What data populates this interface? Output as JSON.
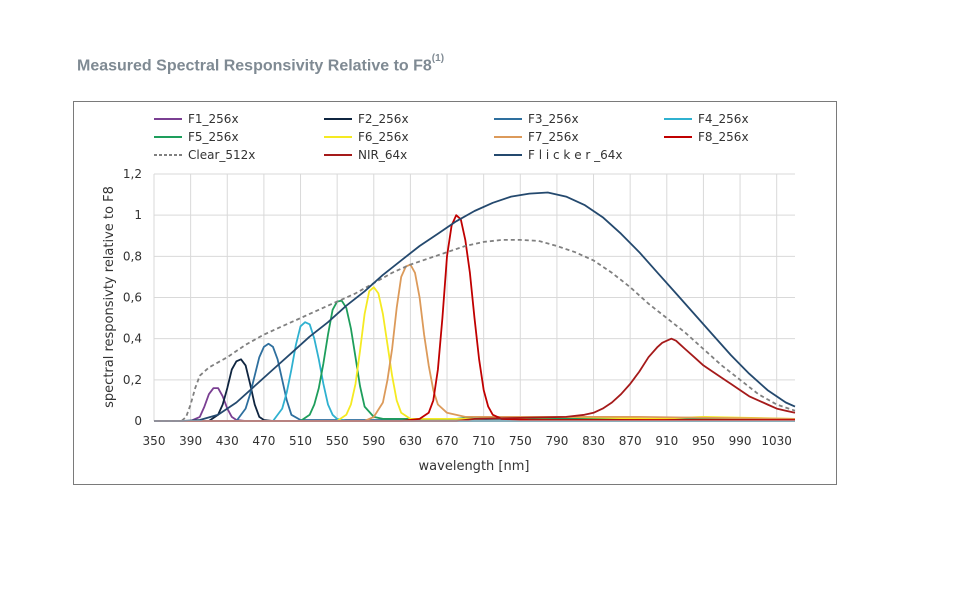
{
  "page": {
    "title": "Measured Spectral Responsivity Relative to F8",
    "title_sup": "(1)"
  },
  "chart_data": {
    "type": "line",
    "title": "Measured Spectral Responsivity Relative to F8",
    "xlabel": "wavelength [nm]",
    "ylabel": "spectral responsivty relative to F8",
    "xlim": [
      350,
      1050
    ],
    "ylim": [
      0,
      1.2
    ],
    "xticks": [
      350,
      390,
      430,
      470,
      510,
      550,
      590,
      630,
      670,
      710,
      750,
      790,
      830,
      870,
      910,
      950,
      990,
      1030
    ],
    "yticks": [
      0,
      0.2,
      0.4,
      0.6,
      0.8,
      1,
      1.2
    ],
    "ytick_labels": [
      "0",
      "0,2",
      "0,4",
      "0,6",
      "0,8",
      "1",
      "1,2"
    ],
    "grid": true,
    "legend_position": "top",
    "series": [
      {
        "name": "F1_256x",
        "color": "#7a3f92",
        "dash": false,
        "x": [
          350,
          390,
          400,
          405,
          410,
          415,
          420,
          425,
          430,
          435,
          440,
          450,
          480,
          1050
        ],
        "y": [
          0,
          0,
          0.02,
          0.07,
          0.13,
          0.16,
          0.16,
          0.12,
          0.06,
          0.02,
          0.005,
          0,
          0,
          0
        ]
      },
      {
        "name": "F2_256x",
        "color": "#0f2540",
        "dash": false,
        "x": [
          350,
          410,
          420,
          425,
          430,
          435,
          440,
          445,
          450,
          455,
          460,
          465,
          470,
          480,
          1050
        ],
        "y": [
          0,
          0,
          0.03,
          0.08,
          0.16,
          0.25,
          0.29,
          0.3,
          0.27,
          0.18,
          0.08,
          0.02,
          0.005,
          0,
          0
        ]
      },
      {
        "name": "F3_256x",
        "color": "#2e6f9e",
        "dash": false,
        "x": [
          350,
          440,
          450,
          455,
          460,
          465,
          470,
          475,
          480,
          485,
          490,
          495,
          500,
          510,
          1050
        ],
        "y": [
          0,
          0,
          0.06,
          0.13,
          0.22,
          0.31,
          0.36,
          0.375,
          0.36,
          0.3,
          0.2,
          0.1,
          0.03,
          0.005,
          0.005
        ]
      },
      {
        "name": "F4_256x",
        "color": "#2fb1d0",
        "dash": false,
        "x": [
          350,
          480,
          490,
          495,
          500,
          505,
          510,
          515,
          520,
          525,
          530,
          535,
          540,
          545,
          550,
          560,
          1050
        ],
        "y": [
          0,
          0,
          0.06,
          0.14,
          0.25,
          0.37,
          0.46,
          0.48,
          0.47,
          0.4,
          0.3,
          0.18,
          0.08,
          0.03,
          0.01,
          0,
          0
        ]
      },
      {
        "name": "F5_256x",
        "color": "#1e9e5c",
        "dash": false,
        "x": [
          350,
          510,
          520,
          525,
          530,
          535,
          540,
          545,
          550,
          555,
          560,
          565,
          570,
          575,
          580,
          590,
          600,
          680,
          700,
          750,
          1050
        ],
        "y": [
          0,
          0,
          0.03,
          0.08,
          0.16,
          0.28,
          0.42,
          0.54,
          0.58,
          0.585,
          0.55,
          0.45,
          0.31,
          0.17,
          0.07,
          0.02,
          0.01,
          0.01,
          0.02,
          0.01,
          0.01
        ]
      },
      {
        "name": "F6_256x",
        "color": "#f5ea22",
        "dash": false,
        "x": [
          350,
          550,
          560,
          565,
          570,
          575,
          580,
          585,
          590,
          595,
          600,
          605,
          610,
          615,
          620,
          630,
          700,
          800,
          900,
          950,
          1050
        ],
        "y": [
          0,
          0,
          0.03,
          0.08,
          0.18,
          0.34,
          0.52,
          0.63,
          0.65,
          0.62,
          0.52,
          0.37,
          0.22,
          0.1,
          0.04,
          0.01,
          0.01,
          0.02,
          0.01,
          0.02,
          0.01
        ]
      },
      {
        "name": "F7_256x",
        "color": "#dc9a5a",
        "dash": false,
        "x": [
          350,
          580,
          590,
          600,
          605,
          610,
          615,
          620,
          625,
          630,
          635,
          640,
          645,
          650,
          655,
          660,
          670,
          690,
          760,
          880,
          960,
          1050
        ],
        "y": [
          0,
          0,
          0.02,
          0.09,
          0.2,
          0.35,
          0.55,
          0.7,
          0.75,
          0.76,
          0.72,
          0.6,
          0.42,
          0.27,
          0.15,
          0.08,
          0.04,
          0.02,
          0.02,
          0.02,
          0.015,
          0.01
        ]
      },
      {
        "name": "F8_256x",
        "color": "#c00000",
        "dash": false,
        "x": [
          350,
          620,
          640,
          650,
          655,
          660,
          665,
          670,
          675,
          680,
          685,
          690,
          695,
          700,
          705,
          710,
          715,
          720,
          730,
          760,
          800,
          850,
          870,
          890,
          900,
          910,
          920,
          930,
          940,
          960,
          980,
          1000,
          1020,
          1040,
          1050
        ],
        "y": [
          0,
          0,
          0.01,
          0.04,
          0.1,
          0.25,
          0.5,
          0.8,
          0.95,
          1,
          0.98,
          0.88,
          0.72,
          0.5,
          0.3,
          0.15,
          0.07,
          0.03,
          0.01,
          0.005,
          0.005,
          0.005,
          0.005,
          0.005,
          0.005,
          0.005,
          0.005,
          0.005,
          0.005,
          0.005,
          0.005,
          0.005,
          0.005,
          0.005,
          0.005
        ]
      },
      {
        "name": "Clear_512x",
        "color": "#808080",
        "dash": true,
        "x": [
          350,
          380,
          385,
          390,
          395,
          400,
          410,
          430,
          450,
          470,
          490,
          510,
          530,
          550,
          570,
          590,
          610,
          630,
          650,
          670,
          690,
          710,
          730,
          750,
          770,
          790,
          810,
          830,
          850,
          870,
          890,
          910,
          930,
          950,
          970,
          990,
          1010,
          1030,
          1050
        ],
        "y": [
          0,
          0,
          0.02,
          0.08,
          0.16,
          0.22,
          0.26,
          0.31,
          0.37,
          0.42,
          0.46,
          0.5,
          0.54,
          0.58,
          0.62,
          0.67,
          0.72,
          0.76,
          0.79,
          0.82,
          0.85,
          0.87,
          0.88,
          0.88,
          0.875,
          0.85,
          0.82,
          0.78,
          0.72,
          0.65,
          0.57,
          0.5,
          0.43,
          0.35,
          0.27,
          0.2,
          0.13,
          0.08,
          0.05
        ]
      },
      {
        "name": "NIR_64x",
        "color": "#a51a1a",
        "dash": false,
        "x": [
          350,
          680,
          700,
          750,
          800,
          820,
          830,
          840,
          850,
          860,
          870,
          880,
          890,
          900,
          905,
          910,
          915,
          920,
          925,
          930,
          940,
          950,
          960,
          970,
          980,
          990,
          1000,
          1010,
          1020,
          1030,
          1040,
          1050
        ],
        "y": [
          0,
          0,
          0.01,
          0.015,
          0.02,
          0.03,
          0.04,
          0.06,
          0.09,
          0.13,
          0.18,
          0.24,
          0.31,
          0.36,
          0.38,
          0.39,
          0.4,
          0.39,
          0.37,
          0.35,
          0.31,
          0.27,
          0.24,
          0.21,
          0.18,
          0.15,
          0.12,
          0.1,
          0.08,
          0.06,
          0.05,
          0.04
        ]
      },
      {
        "name": "Flicker_64x",
        "color": "#24496e",
        "dash": false,
        "x": [
          350,
          380,
          400,
          420,
          440,
          460,
          480,
          500,
          520,
          540,
          560,
          580,
          600,
          620,
          640,
          660,
          680,
          700,
          720,
          740,
          760,
          780,
          800,
          820,
          840,
          860,
          880,
          900,
          920,
          940,
          960,
          980,
          1000,
          1020,
          1040,
          1050
        ],
        "y": [
          0,
          0,
          0.005,
          0.03,
          0.09,
          0.17,
          0.25,
          0.33,
          0.41,
          0.48,
          0.56,
          0.63,
          0.71,
          0.78,
          0.85,
          0.91,
          0.97,
          1.02,
          1.06,
          1.09,
          1.105,
          1.11,
          1.09,
          1.05,
          0.99,
          0.91,
          0.82,
          0.72,
          0.62,
          0.52,
          0.42,
          0.32,
          0.23,
          0.15,
          0.09,
          0.07
        ]
      }
    ],
    "legend_labels": [
      "F1_256x",
      "F2_256x",
      "F3_256x",
      "F4_256x",
      "F5_256x",
      "F6_256x",
      "F7_256x",
      "F8_256x",
      "Clear_512x",
      "NIR_64x",
      "F l i c k e r _64x"
    ]
  }
}
